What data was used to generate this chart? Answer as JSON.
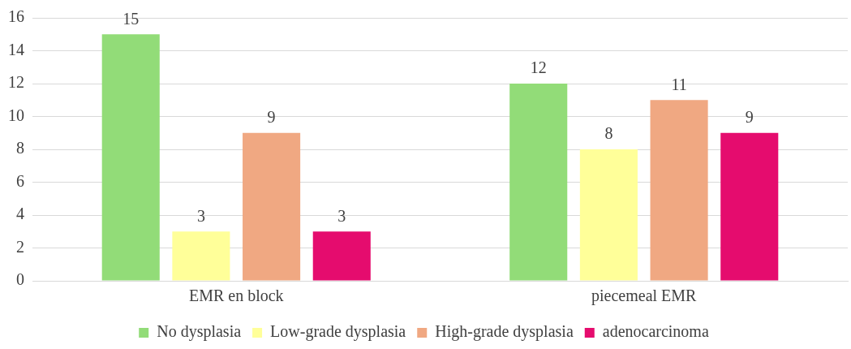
{
  "chart_data": {
    "type": "bar",
    "categories": [
      "EMR en block",
      "piecemeal EMR"
    ],
    "series": [
      {
        "name": "No dysplasia",
        "color": "#92dc78",
        "values": [
          15,
          12
        ]
      },
      {
        "name": "Low-grade dysplasia",
        "color": "#ffff99",
        "values": [
          3,
          8
        ]
      },
      {
        "name": "High-grade dysplasia",
        "color": "#f0a882",
        "values": [
          9,
          11
        ]
      },
      {
        "name": "adenocarcinoma",
        "color": "#e50c6e",
        "values": [
          3,
          9
        ]
      }
    ],
    "ylim": [
      0,
      16
    ],
    "yticks": [
      0,
      2,
      4,
      6,
      8,
      10,
      12,
      14,
      16
    ],
    "grid": "y",
    "legend": "bottom",
    "data_labels": true
  }
}
